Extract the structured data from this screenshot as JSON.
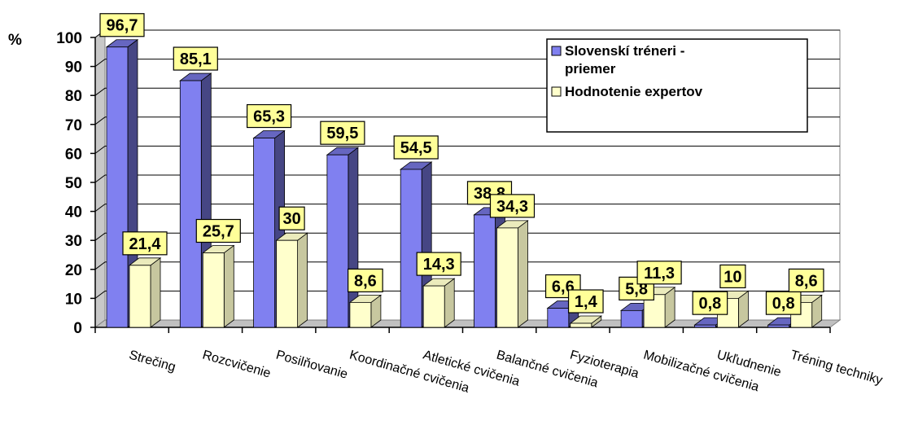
{
  "chart_data": {
    "type": "bar",
    "y_unit_label": "%",
    "categories": [
      "Strečing",
      "Rozcvičenie",
      "Posilňovanie",
      "Koordinačné cvičenia",
      "Atletické cvičenia",
      "Balančné cvičenia",
      "Fyzioterapia",
      "Mobilizačné cvičenia",
      "Ukľudnenie",
      "Tréning techniky"
    ],
    "series": [
      {
        "name": "Slovenskí tréneri - priemer",
        "color": "#8080f0",
        "values": [
          96.7,
          85.1,
          65.3,
          59.5,
          54.5,
          38.8,
          6.6,
          5.8,
          0.8,
          0.8
        ],
        "labels": [
          "96,7",
          "85,1",
          "65,3",
          "59,5",
          "54,5",
          "38,8",
          "6,6",
          "5,8",
          "0,8",
          "0,8"
        ]
      },
      {
        "name": "Hodnotenie expertov",
        "color": "#ffffcc",
        "values": [
          21.4,
          25.7,
          30,
          8.6,
          14.3,
          34.3,
          1.4,
          11.3,
          10,
          8.6
        ],
        "labels": [
          "21,4",
          "25,7",
          "30",
          "8,6",
          "14,3",
          "34,3",
          "1,4",
          "11,3",
          "10",
          "8,6"
        ]
      }
    ],
    "legend_lines": [
      [
        "Slovenskí tréneri -",
        "priemer"
      ],
      [
        "Hodnotenie expertov"
      ]
    ],
    "ylim": [
      0,
      100
    ],
    "yticks": [
      0,
      10,
      20,
      30,
      40,
      50,
      60,
      70,
      80,
      90,
      100
    ],
    "ytick_labels": [
      "0",
      "10",
      "20",
      "30",
      "40",
      "50",
      "60",
      "70",
      "80",
      "90",
      "100"
    ],
    "grid": true,
    "legend_position": "top-right",
    "data_label_bg": "#ffff99"
  }
}
